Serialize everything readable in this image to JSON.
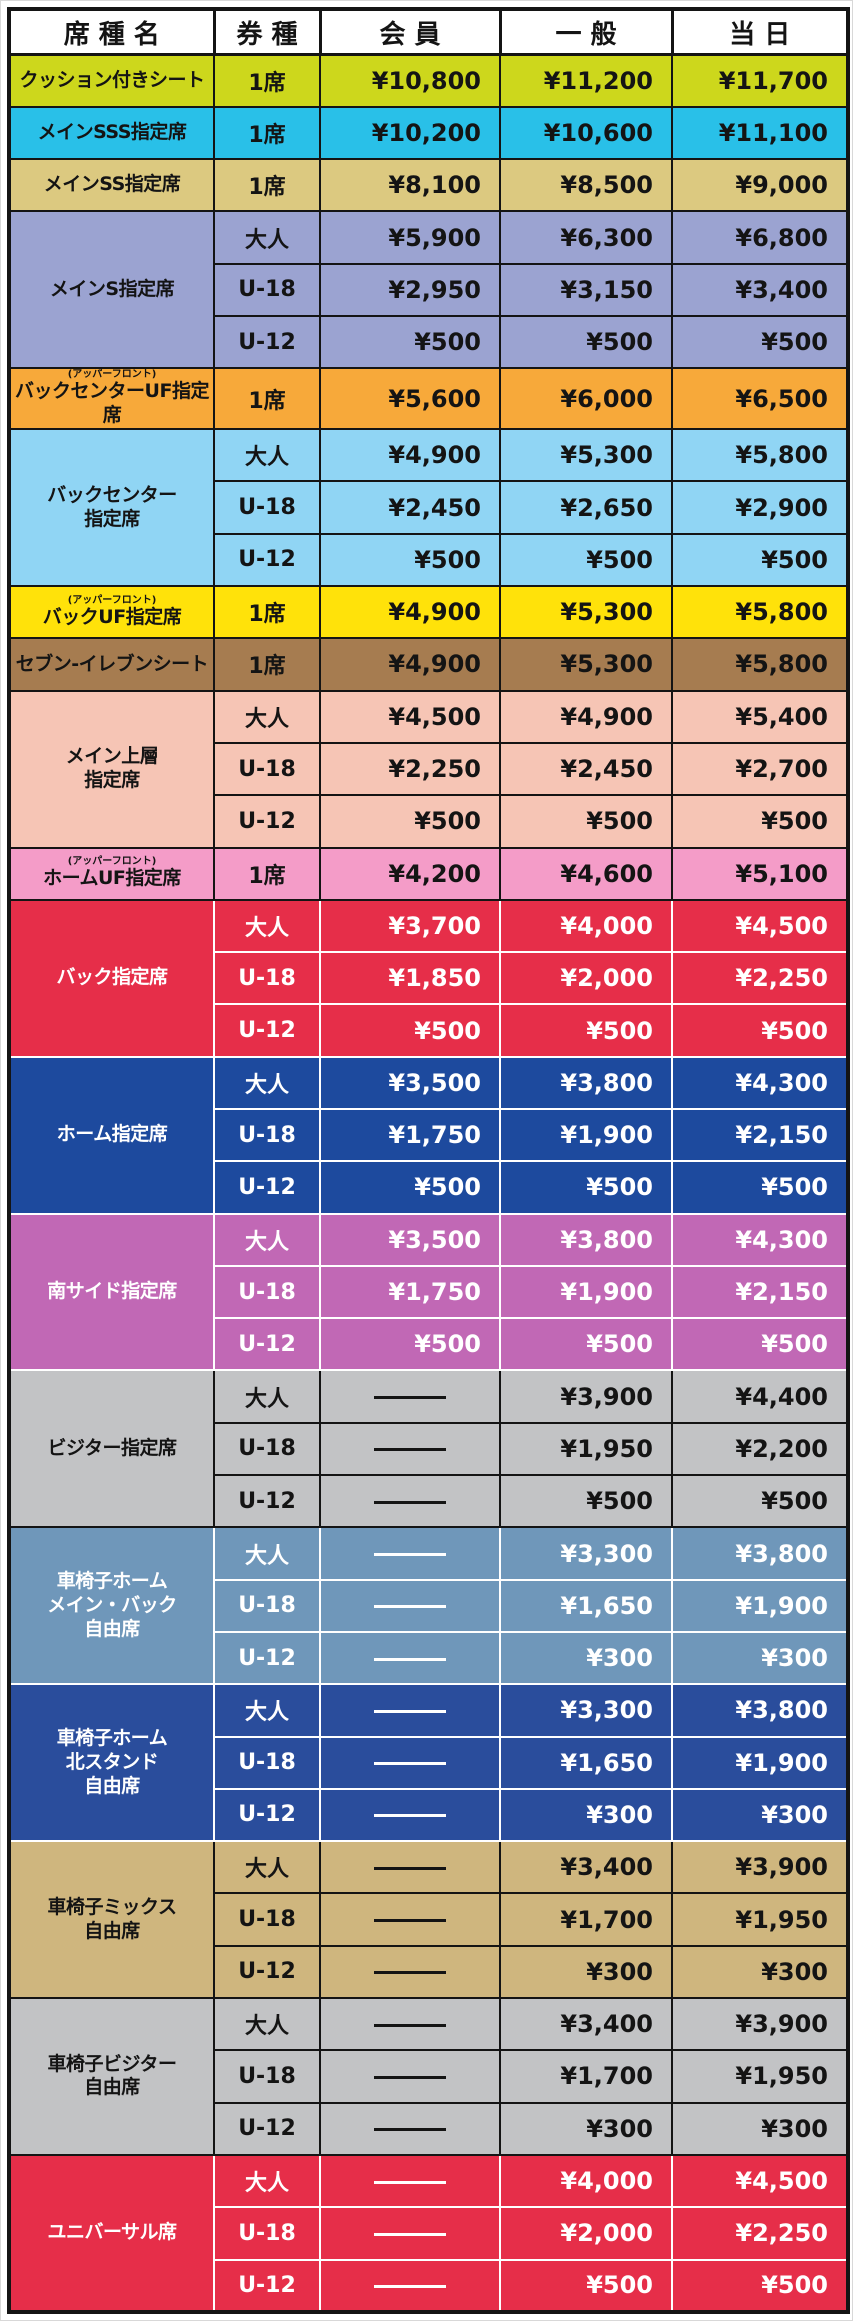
{
  "table": {
    "header_labels": [
      "席 種 名",
      "券 種",
      "会 員",
      "一 般",
      "当 日"
    ],
    "no_price_marker": "—",
    "default_text_color": "#141414",
    "groups": [
      {
        "seat": [
          "クッション付きシート"
        ],
        "note": "",
        "bg": "#cdd71c",
        "fg": "#141414",
        "line": "#141414",
        "rows": [
          [
            "1席",
            "¥10,800",
            "¥11,200",
            "¥11,700"
          ]
        ]
      },
      {
        "seat": [
          "メインSSS指定席"
        ],
        "note": "",
        "bg": "#29c0e8",
        "fg": "#141414",
        "line": "#141414",
        "rows": [
          [
            "1席",
            "¥10,200",
            "¥10,600",
            "¥11,100"
          ]
        ]
      },
      {
        "seat": [
          "メインSS指定席"
        ],
        "note": "",
        "bg": "#dcc980",
        "fg": "#141414",
        "line": "#141414",
        "rows": [
          [
            "1席",
            "¥8,100",
            "¥8,500",
            "¥9,000"
          ]
        ]
      },
      {
        "seat": [
          "メインS指定席"
        ],
        "note": "",
        "bg": "#9ba3d1",
        "fg": "#141414",
        "line": "#141414",
        "rows": [
          [
            "大人",
            "¥5,900",
            "¥6,300",
            "¥6,800"
          ],
          [
            "U-18",
            "¥2,950",
            "¥3,150",
            "¥3,400"
          ],
          [
            "U-12",
            "¥500",
            "¥500",
            "¥500"
          ]
        ]
      },
      {
        "seat": [
          "バックセンターUF指定席"
        ],
        "note": "(アッパーフロント)",
        "bg": "#f7a93a",
        "fg": "#141414",
        "line": "#141414",
        "rows": [
          [
            "1席",
            "¥5,600",
            "¥6,000",
            "¥6,500"
          ]
        ]
      },
      {
        "seat": [
          "バックセンター",
          "指定席"
        ],
        "note": "",
        "bg": "#90d5f4",
        "fg": "#141414",
        "line": "#141414",
        "rows": [
          [
            "大人",
            "¥4,900",
            "¥5,300",
            "¥5,800"
          ],
          [
            "U-18",
            "¥2,450",
            "¥2,650",
            "¥2,900"
          ],
          [
            "U-12",
            "¥500",
            "¥500",
            "¥500"
          ]
        ]
      },
      {
        "seat": [
          "バックUF指定席"
        ],
        "note": "(アッパーフロント)",
        "bg": "#ffe20a",
        "fg": "#141414",
        "line": "#141414",
        "rows": [
          [
            "1席",
            "¥4,900",
            "¥5,300",
            "¥5,800"
          ]
        ]
      },
      {
        "seat": [
          "セブン-イレブンシート"
        ],
        "note": "",
        "bg": "#a67c50",
        "fg": "#141414",
        "line": "#141414",
        "rows": [
          [
            "1席",
            "¥4,900",
            "¥5,300",
            "¥5,800"
          ]
        ]
      },
      {
        "seat": [
          "メイン上層",
          "指定席"
        ],
        "note": "",
        "bg": "#f6c5b5",
        "fg": "#141414",
        "line": "#141414",
        "rows": [
          [
            "大人",
            "¥4,500",
            "¥4,900",
            "¥5,400"
          ],
          [
            "U-18",
            "¥2,250",
            "¥2,450",
            "¥2,700"
          ],
          [
            "U-12",
            "¥500",
            "¥500",
            "¥500"
          ]
        ]
      },
      {
        "seat": [
          "ホームUF指定席"
        ],
        "note": "(アッパーフロント)",
        "bg": "#f49cc8",
        "fg": "#141414",
        "line": "#141414",
        "rows": [
          [
            "1席",
            "¥4,200",
            "¥4,600",
            "¥5,100"
          ]
        ]
      },
      {
        "seat": [
          "バック指定席"
        ],
        "note": "",
        "bg": "#e62e49",
        "fg": "#ffffff",
        "line": "#ffffff",
        "rows": [
          [
            "大人",
            "¥3,700",
            "¥4,000",
            "¥4,500"
          ],
          [
            "U-18",
            "¥1,850",
            "¥2,000",
            "¥2,250"
          ],
          [
            "U-12",
            "¥500",
            "¥500",
            "¥500"
          ]
        ]
      },
      {
        "seat": [
          "ホーム指定席"
        ],
        "note": "",
        "bg": "#1d4a9e",
        "fg": "#ffffff",
        "line": "#ffffff",
        "rows": [
          [
            "大人",
            "¥3,500",
            "¥3,800",
            "¥4,300"
          ],
          [
            "U-18",
            "¥1,750",
            "¥1,900",
            "¥2,150"
          ],
          [
            "U-12",
            "¥500",
            "¥500",
            "¥500"
          ]
        ]
      },
      {
        "seat": [
          "南サイド指定席"
        ],
        "note": "",
        "bg": "#c168b5",
        "fg": "#ffffff",
        "line": "#ffffff",
        "rows": [
          [
            "大人",
            "¥3,500",
            "¥3,800",
            "¥4,300"
          ],
          [
            "U-18",
            "¥1,750",
            "¥1,900",
            "¥2,150"
          ],
          [
            "U-12",
            "¥500",
            "¥500",
            "¥500"
          ]
        ]
      },
      {
        "seat": [
          "ビジター指定席"
        ],
        "note": "",
        "bg": "#c2c3c5",
        "fg": "#141414",
        "line": "#141414",
        "rows": [
          [
            "大人",
            "—",
            "¥3,900",
            "¥4,400"
          ],
          [
            "U-18",
            "—",
            "¥1,950",
            "¥2,200"
          ],
          [
            "U-12",
            "—",
            "¥500",
            "¥500"
          ]
        ]
      },
      {
        "seat": [
          "車椅子ホーム",
          "メイン・バック",
          "自由席"
        ],
        "note": "",
        "bg": "#6f97ba",
        "fg": "#ffffff",
        "line": "#ffffff",
        "rows": [
          [
            "大人",
            "—",
            "¥3,300",
            "¥3,800"
          ],
          [
            "U-18",
            "—",
            "¥1,650",
            "¥1,900"
          ],
          [
            "U-12",
            "—",
            "¥300",
            "¥300"
          ]
        ]
      },
      {
        "seat": [
          "車椅子ホーム",
          "北スタンド",
          "自由席"
        ],
        "note": "",
        "bg": "#2a4d9c",
        "fg": "#ffffff",
        "line": "#ffffff",
        "rows": [
          [
            "大人",
            "—",
            "¥3,300",
            "¥3,800"
          ],
          [
            "U-18",
            "—",
            "¥1,650",
            "¥1,900"
          ],
          [
            "U-12",
            "—",
            "¥300",
            "¥300"
          ]
        ]
      },
      {
        "seat": [
          "車椅子ミックス",
          "自由席"
        ],
        "note": "",
        "bg": "#cfb67e",
        "fg": "#141414",
        "line": "#141414",
        "rows": [
          [
            "大人",
            "—",
            "¥3,400",
            "¥3,900"
          ],
          [
            "U-18",
            "—",
            "¥1,700",
            "¥1,950"
          ],
          [
            "U-12",
            "—",
            "¥300",
            "¥300"
          ]
        ]
      },
      {
        "seat": [
          "車椅子ビジター",
          "自由席"
        ],
        "note": "",
        "bg": "#c2c3c5",
        "fg": "#141414",
        "line": "#141414",
        "rows": [
          [
            "大人",
            "—",
            "¥3,400",
            "¥3,900"
          ],
          [
            "U-18",
            "—",
            "¥1,700",
            "¥1,950"
          ],
          [
            "U-12",
            "—",
            "¥300",
            "¥300"
          ]
        ]
      },
      {
        "seat": [
          "ユニバーサル席"
        ],
        "note": "",
        "bg": "#e62e49",
        "fg": "#ffffff",
        "line": "#ffffff",
        "rows": [
          [
            "大人",
            "—",
            "¥4,000",
            "¥4,500"
          ],
          [
            "U-18",
            "—",
            "¥2,000",
            "¥2,250"
          ],
          [
            "U-12",
            "—",
            "¥500",
            "¥500"
          ]
        ]
      }
    ]
  }
}
